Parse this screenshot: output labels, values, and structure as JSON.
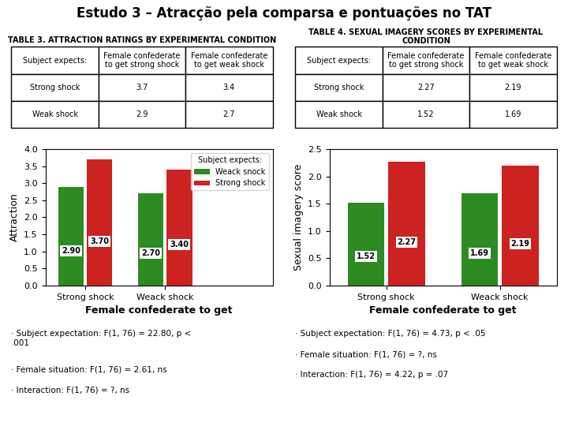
{
  "title": "Estudo 3 – Atracção pela comparsa e pontuações no TAT",
  "chart_data": [
    {
      "type": "table",
      "title": "TABLE 3. ATTRACTION RATINGS BY EXPERIMENTAL CONDITION",
      "columns": [
        "Subject expects:",
        "Female confederate\nto get strong shock",
        "Female confederate\nto get weak shock"
      ],
      "rows": [
        [
          "Strong shock",
          "3.7",
          "3.4"
        ],
        [
          "Weak shock",
          "2.9",
          "2.7"
        ]
      ]
    },
    {
      "type": "table",
      "title": "TABLE 4. SEXUAL IMAGERY SCORES BY EXPERIMENTAL CONDITION",
      "columns": [
        "Subject expects:",
        "Female confederate\nto get strong shock",
        "Female confederate\nto get weak shock"
      ],
      "rows": [
        [
          "Strong shock",
          "2.27",
          "2.19"
        ],
        [
          "Weak shock",
          "1.52",
          "1.69"
        ]
      ]
    },
    {
      "type": "bar",
      "xlabel": "Female confederate to get",
      "ylabel": "Attraction",
      "categories": [
        "Strong shock",
        "Weack shock"
      ],
      "ylim": [
        0.0,
        4.0
      ],
      "yticks": [
        {
          "value": 0.0,
          "label": "0.0"
        },
        0.5,
        {
          "value": 1.0,
          "label": "1.0"
        },
        1.5,
        {
          "value": 2.0,
          "label": "2.0"
        },
        2.5,
        {
          "value": 3.0,
          "label": "3.0"
        },
        3.5,
        {
          "value": 4.0,
          "label": "4.0"
        }
      ],
      "series": [
        {
          "name": "Weack snock",
          "color": "#2E8B22",
          "values": [
            2.9,
            2.7
          ],
          "value_labels": [
            "2.90",
            "2.70"
          ]
        },
        {
          "name": "Strong shock",
          "color": "#CC2222",
          "values": [
            3.7,
            3.4
          ],
          "value_labels": [
            "3.70",
            "3.40"
          ]
        }
      ],
      "data_labels": true,
      "legend": "upper right",
      "legend_title": "Subject expects:",
      "annotations": [
        "· Subject expectation: F(1, 76) = 22.80, p <\n.001",
        "· Female situation: F(1, 76) = 2.61, ns",
        "· Interaction: F(1, 76) = ?, ns"
      ]
    },
    {
      "type": "bar",
      "xlabel": "Female confederate to get",
      "ylabel": "Sexual imagery score",
      "categories": [
        "Strong shock",
        "Weack shock"
      ],
      "ylim": [
        0.0,
        2.5
      ],
      "yticks": [
        {
          "value": 0.0,
          "label": "0.0"
        },
        0.5,
        {
          "value": 1.0,
          "label": "1.0"
        },
        1.5,
        {
          "value": 2.0,
          "label": "2.0"
        },
        2.5
      ],
      "series": [
        {
          "color": "#2E8B22",
          "values": [
            1.52,
            1.69
          ],
          "value_labels": [
            "1.52",
            "1.69"
          ]
        },
        {
          "color": "#CC2222",
          "values": [
            2.27,
            2.19
          ],
          "value_labels": [
            "2.27",
            "2.19"
          ]
        }
      ],
      "data_labels": true,
      "annotations": [
        "· Subject expectation: F(1, 76) = 4.73, p < .05",
        "· Female situation: F(1, 76) = ?, ns",
        "· Interaction: F(1, 76) = 4.22, p = .07"
      ]
    }
  ]
}
